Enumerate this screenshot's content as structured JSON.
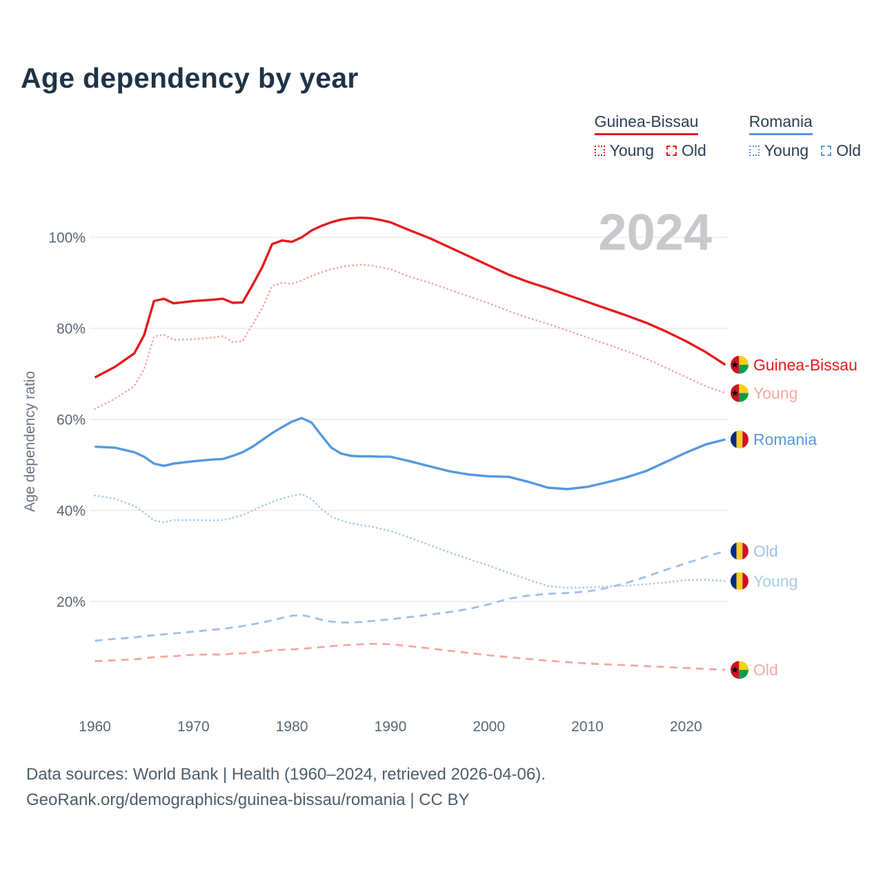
{
  "title": "Age dependency by year",
  "watermark": "2024",
  "y_axis_label": "Age dependency ratio",
  "legend": {
    "groups": [
      {
        "id": "gb",
        "label": "Guinea-Bissau",
        "items": [
          {
            "label": "Young",
            "style": "dotted"
          },
          {
            "label": "Old",
            "style": "dashed"
          }
        ]
      },
      {
        "id": "ro",
        "label": "Romania",
        "items": [
          {
            "label": "Young",
            "style": "dotted"
          },
          {
            "label": "Old",
            "style": "dashed"
          }
        ]
      }
    ]
  },
  "footer": {
    "line1": "Data sources: World Bank | Health (1960–2024, retrieved 2026-04-06).",
    "line2": "GeoRank.org/demographics/guinea-bissau/romania | CC BY"
  },
  "colors": {
    "gb": "#e41a1c",
    "gb_light": "#f5a8a2",
    "ro": "#5598e0",
    "ro_light": "#a4c7ec",
    "grid": "#e7e7e7",
    "watermark": "#c7c9cc",
    "tick_text": "#5a6673",
    "title_text": "#1d3348",
    "footer_text": "#4d5c6b"
  },
  "chart_data": {
    "type": "line",
    "title": "Age dependency by year",
    "ylabel": "Age dependency ratio",
    "xlabel": "",
    "grid": "horizontal-only",
    "legend_position": "top-right",
    "y_ticks": [
      20,
      40,
      60,
      80,
      100
    ],
    "x_ticks": [
      1960,
      1970,
      1980,
      1990,
      2000,
      2010,
      2020
    ],
    "xlim": [
      1958,
      2026
    ],
    "ylim": [
      0,
      110
    ],
    "x": [
      1960,
      1962,
      1964,
      1965,
      1966,
      1967,
      1968,
      1970,
      1972,
      1973,
      1974,
      1975,
      1976,
      1977,
      1978,
      1979,
      1980,
      1981,
      1982,
      1983,
      1984,
      1985,
      1986,
      1987,
      1988,
      1989,
      1990,
      1992,
      1994,
      1996,
      1998,
      2000,
      2002,
      2004,
      2006,
      2008,
      2010,
      2012,
      2014,
      2016,
      2018,
      2020,
      2022,
      2024
    ],
    "series": [
      {
        "id": "gw-total",
        "name": "Guinea-Bissau (total)",
        "color": "#e41a1c",
        "dash": "solid",
        "width": 3.4,
        "flag": "gw",
        "end_label": "Guinea-Bissau",
        "label_color": "#e41a1c",
        "values": [
          69.2,
          71.5,
          74.5,
          78.5,
          86.0,
          86.5,
          85.5,
          86.0,
          86.3,
          86.5,
          85.6,
          85.7,
          89.5,
          93.5,
          98.5,
          99.3,
          99.0,
          100.0,
          101.5,
          102.5,
          103.3,
          103.9,
          104.2,
          104.3,
          104.2,
          103.8,
          103.3,
          101.5,
          99.8,
          97.8,
          95.8,
          93.8,
          91.8,
          90.2,
          88.8,
          87.3,
          85.8,
          84.3,
          82.8,
          81.2,
          79.3,
          77.2,
          74.8,
          72.0
        ]
      },
      {
        "id": "gw-young",
        "name": "Guinea-Bissau Young",
        "color": "#f5a8a2",
        "dash": "dotted",
        "width": 2.8,
        "flag": "gw",
        "end_label": "Young",
        "label_color": "#f5a8a2",
        "values": [
          62.3,
          64.5,
          67.3,
          71.0,
          78.2,
          78.6,
          77.5,
          77.6,
          78.0,
          78.3,
          77.0,
          77.2,
          80.8,
          84.5,
          89.3,
          90.0,
          89.8,
          90.5,
          91.5,
          92.3,
          93.0,
          93.5,
          93.8,
          94.0,
          93.8,
          93.4,
          93.0,
          91.3,
          90.0,
          88.5,
          87.0,
          85.5,
          83.8,
          82.3,
          81.0,
          79.5,
          78.0,
          76.5,
          75.0,
          73.3,
          71.3,
          69.3,
          67.3,
          65.8
        ]
      },
      {
        "id": "gw-old",
        "name": "Guinea-Bissau Old",
        "color": "#f5a8a2",
        "dash": "dashed",
        "width": 2.8,
        "flag": "gw",
        "end_label": "Old",
        "label_color": "#f5a8a2",
        "values": [
          6.9,
          7.1,
          7.3,
          7.5,
          7.8,
          7.9,
          8.0,
          8.3,
          8.4,
          8.3,
          8.6,
          8.6,
          8.8,
          9.0,
          9.3,
          9.4,
          9.5,
          9.6,
          9.8,
          10.0,
          10.2,
          10.4,
          10.5,
          10.6,
          10.7,
          10.7,
          10.6,
          10.2,
          9.7,
          9.2,
          8.7,
          8.2,
          7.8,
          7.4,
          7.0,
          6.7,
          6.4,
          6.2,
          6.0,
          5.8,
          5.6,
          5.4,
          5.2,
          5.0
        ]
      },
      {
        "id": "ro-total",
        "name": "Romania (total)",
        "color": "#5598e0",
        "dash": "solid",
        "width": 3.4,
        "flag": "ro",
        "end_label": "Romania",
        "label_color": "#5598e0",
        "values": [
          54.0,
          53.8,
          52.8,
          51.8,
          50.3,
          49.8,
          50.3,
          50.8,
          51.2,
          51.3,
          52.0,
          52.8,
          54.0,
          55.5,
          57.0,
          58.3,
          59.5,
          60.3,
          59.3,
          56.5,
          53.8,
          52.5,
          52.0,
          51.9,
          51.9,
          51.8,
          51.8,
          50.8,
          49.7,
          48.6,
          47.9,
          47.5,
          47.4,
          46.3,
          45.0,
          44.7,
          45.2,
          46.2,
          47.3,
          48.7,
          50.7,
          52.7,
          54.5,
          55.6
        ]
      },
      {
        "id": "ro-old",
        "name": "Romania Old",
        "color": "#9dc1ea",
        "dash": "dashed",
        "width": 2.8,
        "flag": "ro",
        "end_label": "Old",
        "label_color": "#9dc1ea",
        "values": [
          11.4,
          11.8,
          12.1,
          12.4,
          12.6,
          12.8,
          13.0,
          13.4,
          13.8,
          14.0,
          14.3,
          14.6,
          15.0,
          15.4,
          15.9,
          16.4,
          16.9,
          17.0,
          16.6,
          16.0,
          15.6,
          15.4,
          15.4,
          15.5,
          15.7,
          15.9,
          16.1,
          16.6,
          17.1,
          17.7,
          18.4,
          19.4,
          20.6,
          21.3,
          21.7,
          21.9,
          22.2,
          23.0,
          24.1,
          25.5,
          27.0,
          28.4,
          29.8,
          31.1
        ]
      },
      {
        "id": "ro-young",
        "name": "Romania Young",
        "color": "#a9cbee",
        "dash": "dotted",
        "width": 2.8,
        "flag": "ro",
        "end_label": "Young",
        "label_color": "#a9cbee",
        "values": [
          43.3,
          42.6,
          41.0,
          39.5,
          37.8,
          37.4,
          37.9,
          37.9,
          37.8,
          37.9,
          38.4,
          39.0,
          40.0,
          41.0,
          41.9,
          42.6,
          43.2,
          43.6,
          42.5,
          40.3,
          38.7,
          37.8,
          37.2,
          36.8,
          36.5,
          36.0,
          35.5,
          34.0,
          32.4,
          30.8,
          29.3,
          27.9,
          26.3,
          24.8,
          23.4,
          23.0,
          23.1,
          23.3,
          23.5,
          23.8,
          24.2,
          24.7,
          24.8,
          24.5
        ]
      }
    ]
  }
}
